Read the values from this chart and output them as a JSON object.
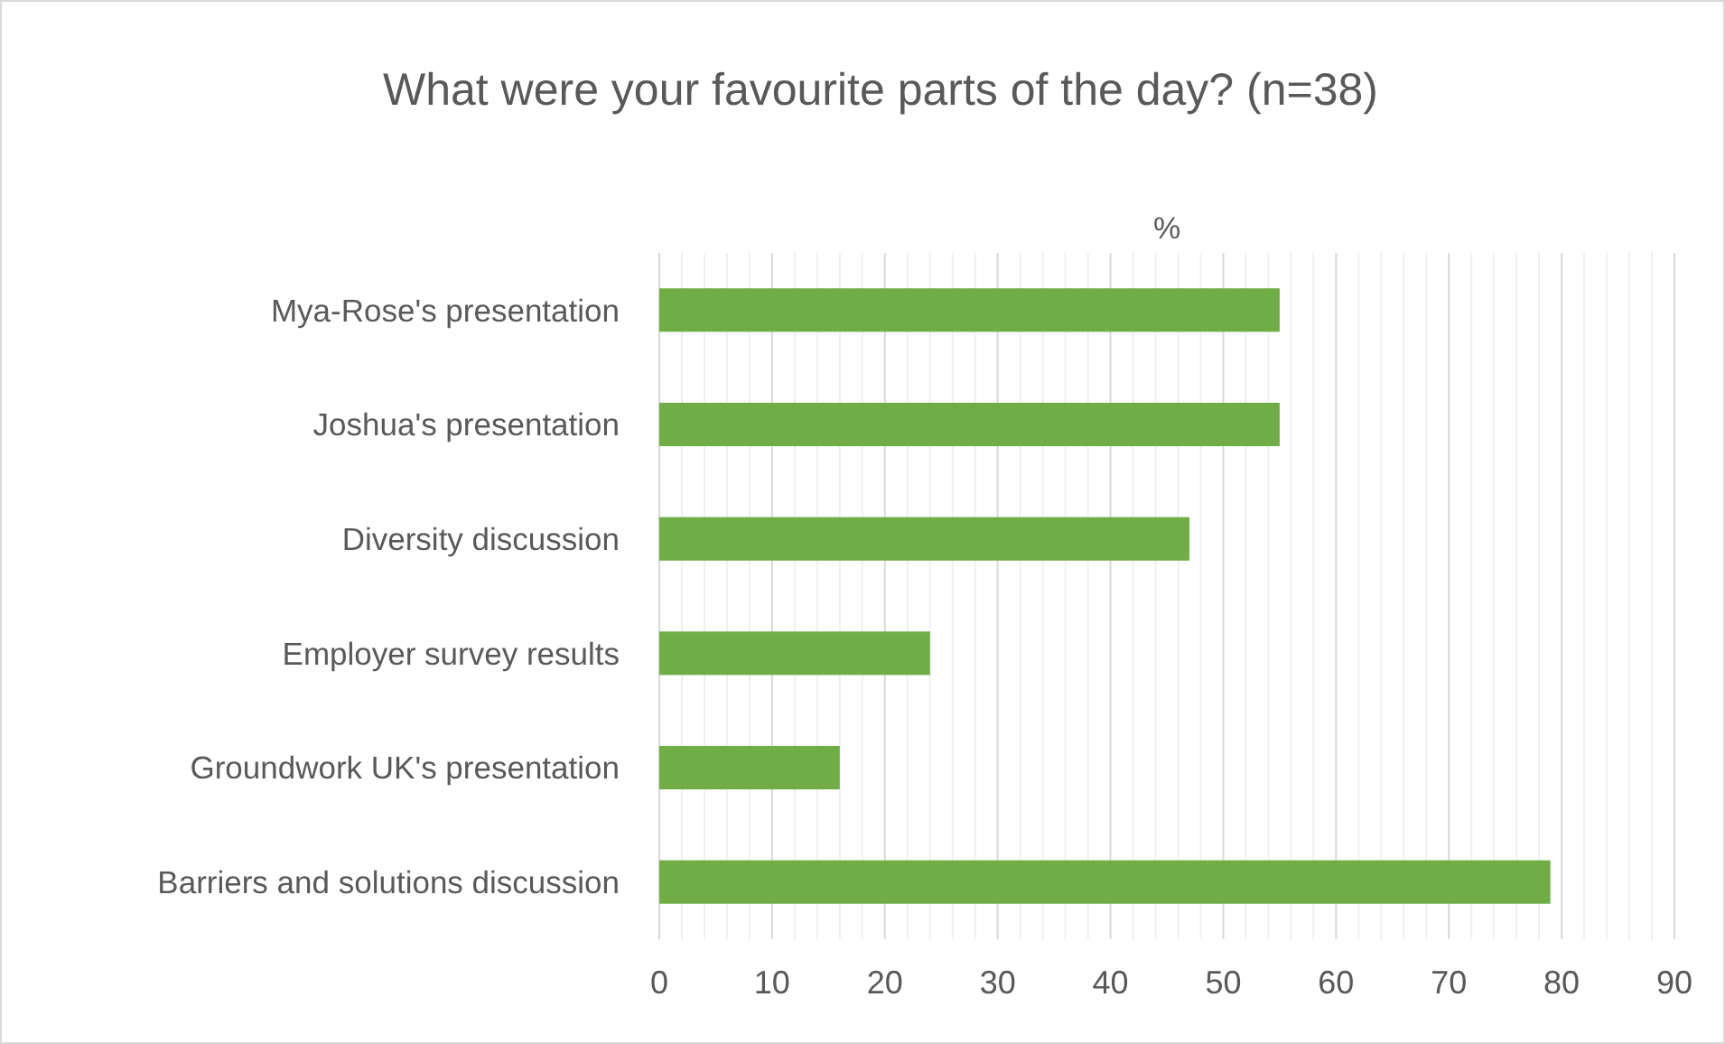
{
  "chart_data": {
    "type": "bar",
    "orientation": "horizontal",
    "title": "What were your favourite parts of the day? (n=38)",
    "xlabel": "%",
    "categories": [
      "Mya-Rose's presentation",
      "Joshua's presentation",
      "Diversity discussion",
      "Employer survey results",
      "Groundwork UK's presentation",
      "Barriers and solutions discussion"
    ],
    "values": [
      55,
      55,
      47,
      24,
      16,
      79
    ],
    "color": "#70ad47",
    "xlim": [
      0,
      90
    ],
    "xticks": [
      0,
      {
        "value": 2,
        "label": null
      },
      {
        "value": 4,
        "label": null
      },
      {
        "value": 6,
        "label": null
      },
      {
        "value": 8,
        "label": null
      },
      10,
      {
        "value": 12,
        "label": null
      },
      {
        "value": 14,
        "label": null
      },
      {
        "value": 16,
        "label": null
      },
      {
        "value": 18,
        "label": null
      },
      20,
      {
        "value": 22,
        "label": null
      },
      {
        "value": 24,
        "label": null
      },
      {
        "value": 26,
        "label": null
      },
      {
        "value": 28,
        "label": null
      },
      30,
      {
        "value": 32,
        "label": null
      },
      {
        "value": 34,
        "label": null
      },
      {
        "value": 36,
        "label": null
      },
      {
        "value": 38,
        "label": null
      },
      40,
      {
        "value": 42,
        "label": null
      },
      {
        "value": 44,
        "label": null
      },
      {
        "value": 46,
        "label": null
      },
      {
        "value": 48,
        "label": null
      },
      50,
      {
        "value": 52,
        "label": null
      },
      {
        "value": 54,
        "label": null
      },
      {
        "value": 56,
        "label": null
      },
      {
        "value": 58,
        "label": null
      },
      60,
      {
        "value": 62,
        "label": null
      },
      {
        "value": 64,
        "label": null
      },
      {
        "value": 66,
        "label": null
      },
      {
        "value": 68,
        "label": null
      },
      70,
      {
        "value": 72,
        "label": null
      },
      {
        "value": 74,
        "label": null
      },
      {
        "value": 76,
        "label": null
      },
      {
        "value": 78,
        "label": null
      },
      80,
      {
        "value": 82,
        "label": null
      },
      {
        "value": 84,
        "label": null
      },
      {
        "value": 86,
        "label": null
      },
      {
        "value": 88,
        "label": null
      },
      90
    ],
    "grid": "x"
  }
}
